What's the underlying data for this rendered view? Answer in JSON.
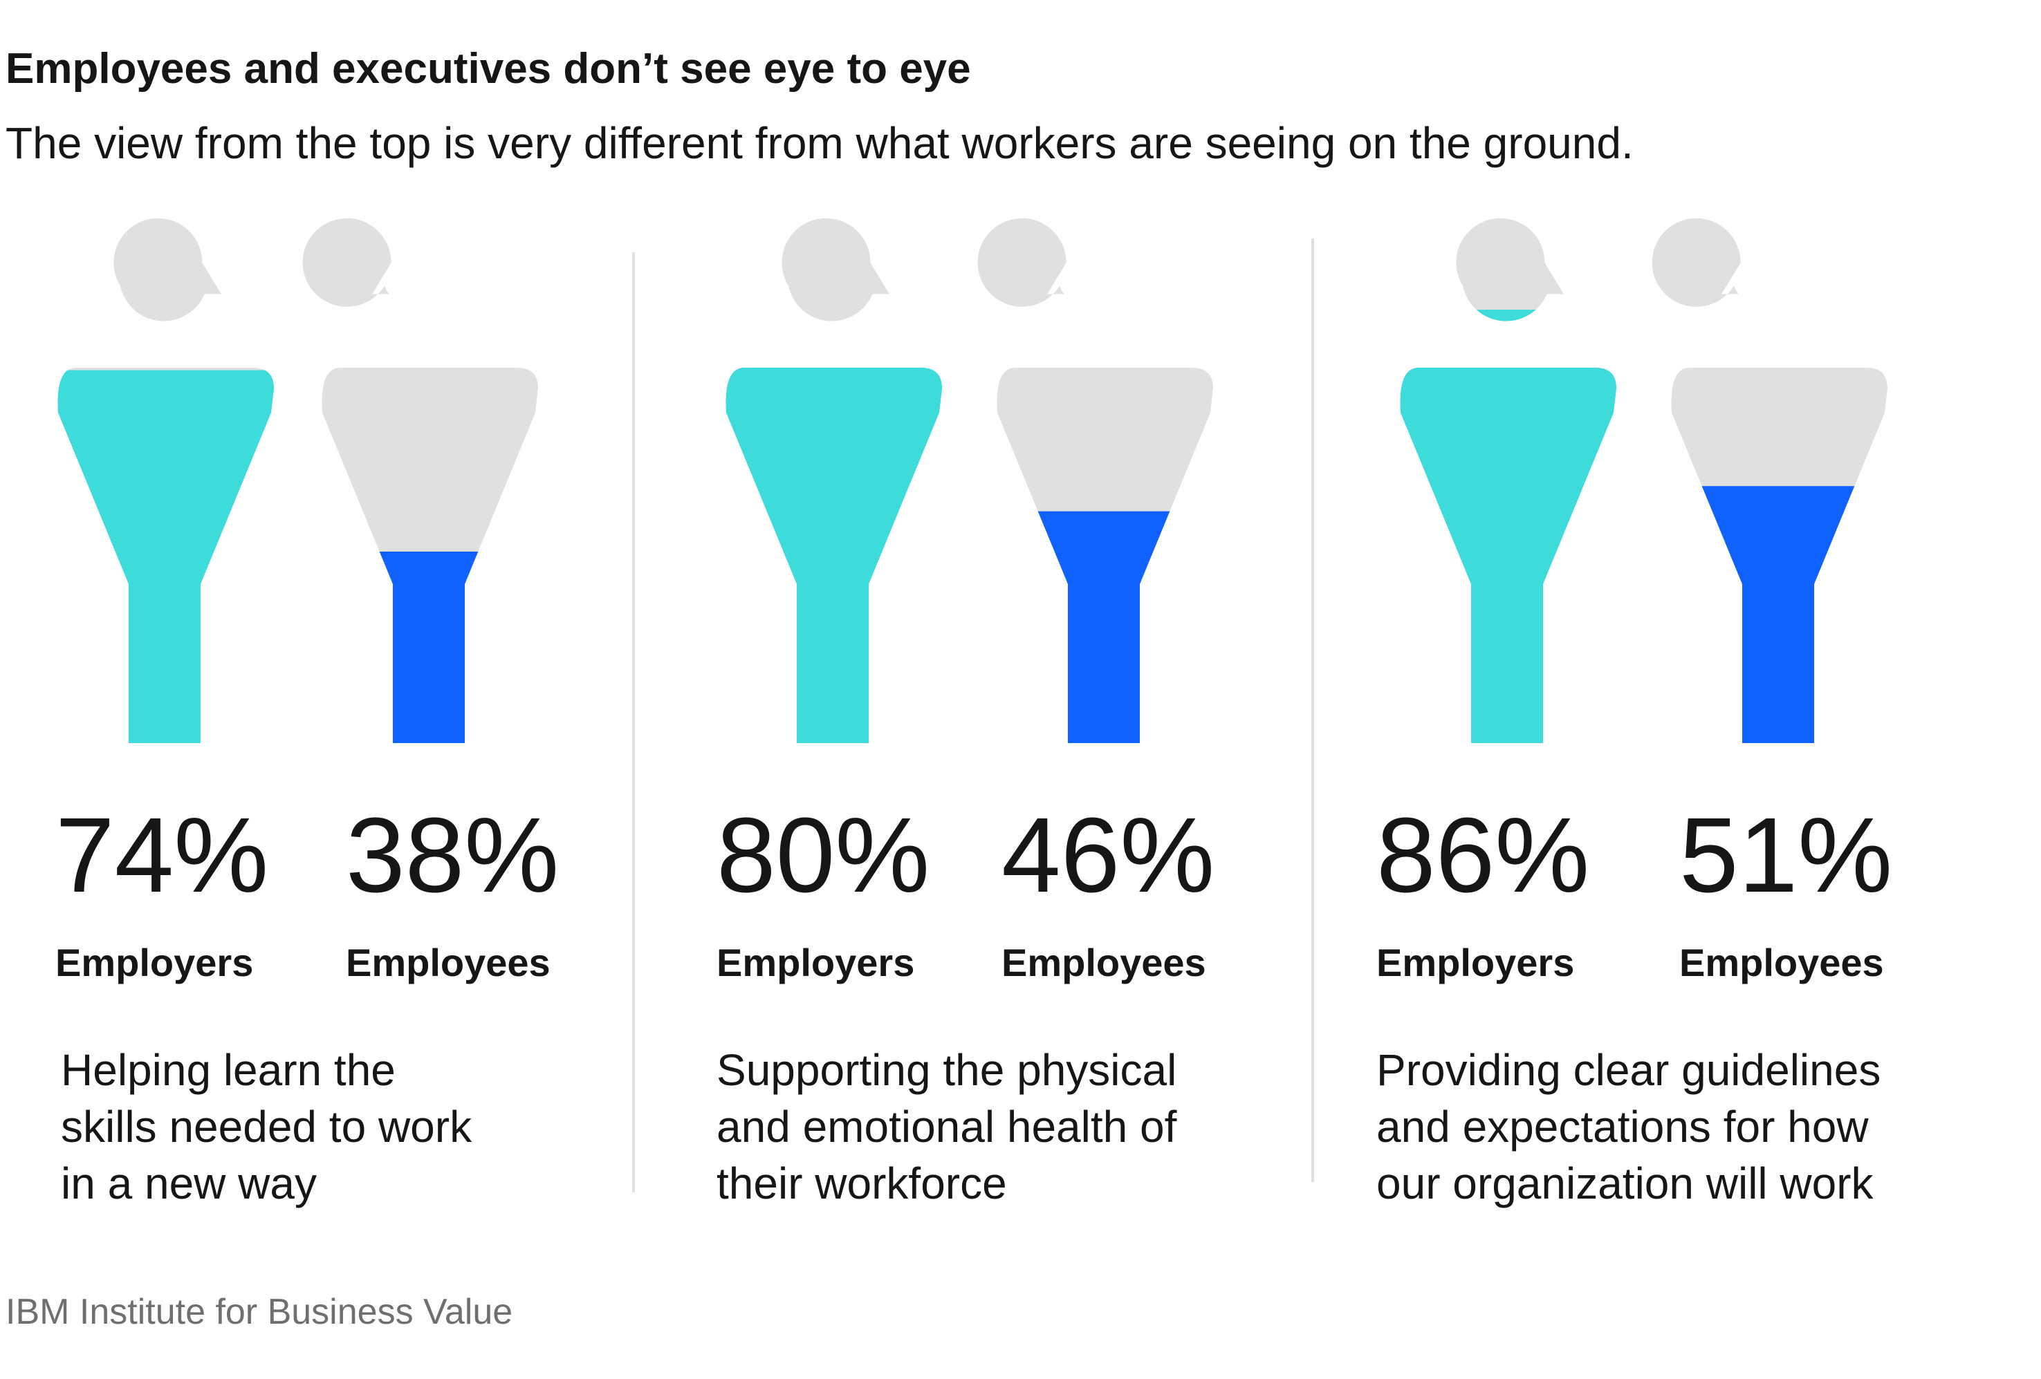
{
  "title": "Employees and executives don’t see eye to eye",
  "subtitle": "The view from the top is very different from what workers are seeing on the ground.",
  "source": "IBM Institute for Business Value",
  "colors": {
    "employers": "#3ddbd9",
    "employees": "#0f62fe",
    "empty": "#e0e0e0",
    "divider": "#e0e0e0"
  },
  "chart_data": {
    "type": "bar",
    "unit": "%",
    "ylim": [
      0,
      100
    ],
    "series_names": [
      "Employers",
      "Employees"
    ],
    "groups": [
      {
        "description": [
          "Helping learn the",
          "skills needed to work",
          "in a new way"
        ],
        "values": [
          {
            "label": "74%",
            "group": "Employers",
            "value": 74
          },
          {
            "label": "38%",
            "group": "Employees",
            "value": 38
          }
        ]
      },
      {
        "description": [
          "Supporting the physical",
          "and emotional health of",
          "their workforce"
        ],
        "values": [
          {
            "label": "80%",
            "group": "Employers",
            "value": 80
          },
          {
            "label": "46%",
            "group": "Employees",
            "value": 46
          }
        ]
      },
      {
        "description": [
          "Providing clear guidelines",
          "and expectations for how",
          "our organization will work"
        ],
        "values": [
          {
            "label": "86%",
            "group": "Employers",
            "value": 86
          },
          {
            "label": "51%",
            "group": "Employees",
            "value": 51
          }
        ]
      }
    ]
  }
}
